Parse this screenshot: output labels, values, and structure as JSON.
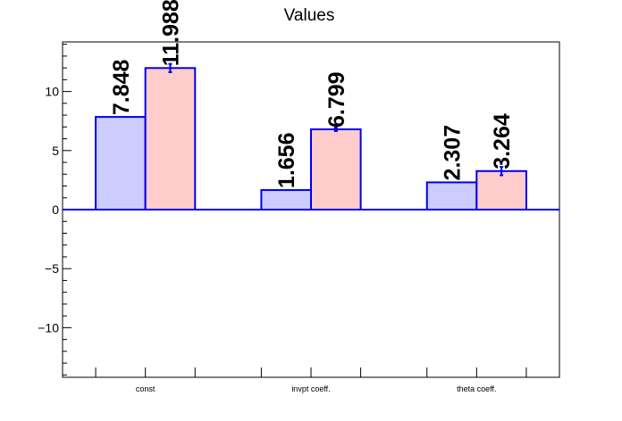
{
  "chart_data": {
    "type": "bar",
    "title": "Values",
    "xlabel": "",
    "ylabel": "",
    "categories": [
      "const",
      "invpt coeff.",
      "theta coeff."
    ],
    "ylim": [
      -14.2,
      14.2
    ],
    "yticks": [
      -10,
      -5,
      0,
      5,
      10
    ],
    "ytick_labels": [
      "−10",
      "−5",
      "0",
      "5",
      "10"
    ],
    "grid": false,
    "series": [
      {
        "values": [
          7.848,
          1.656,
          2.307
        ],
        "value_labels": [
          "7.848",
          "1.656",
          "2.307"
        ],
        "errors": [
          0,
          0,
          0
        ],
        "fill": "#ccccff",
        "stroke": "#0000ee"
      },
      {
        "values": [
          11.988,
          6.799,
          3.264
        ],
        "value_labels": [
          "11.988",
          "6.799",
          "3.264"
        ],
        "errors": [
          0.35,
          0.15,
          0.35
        ],
        "fill": "#ffcccc",
        "stroke": "#0000ee"
      }
    ]
  }
}
